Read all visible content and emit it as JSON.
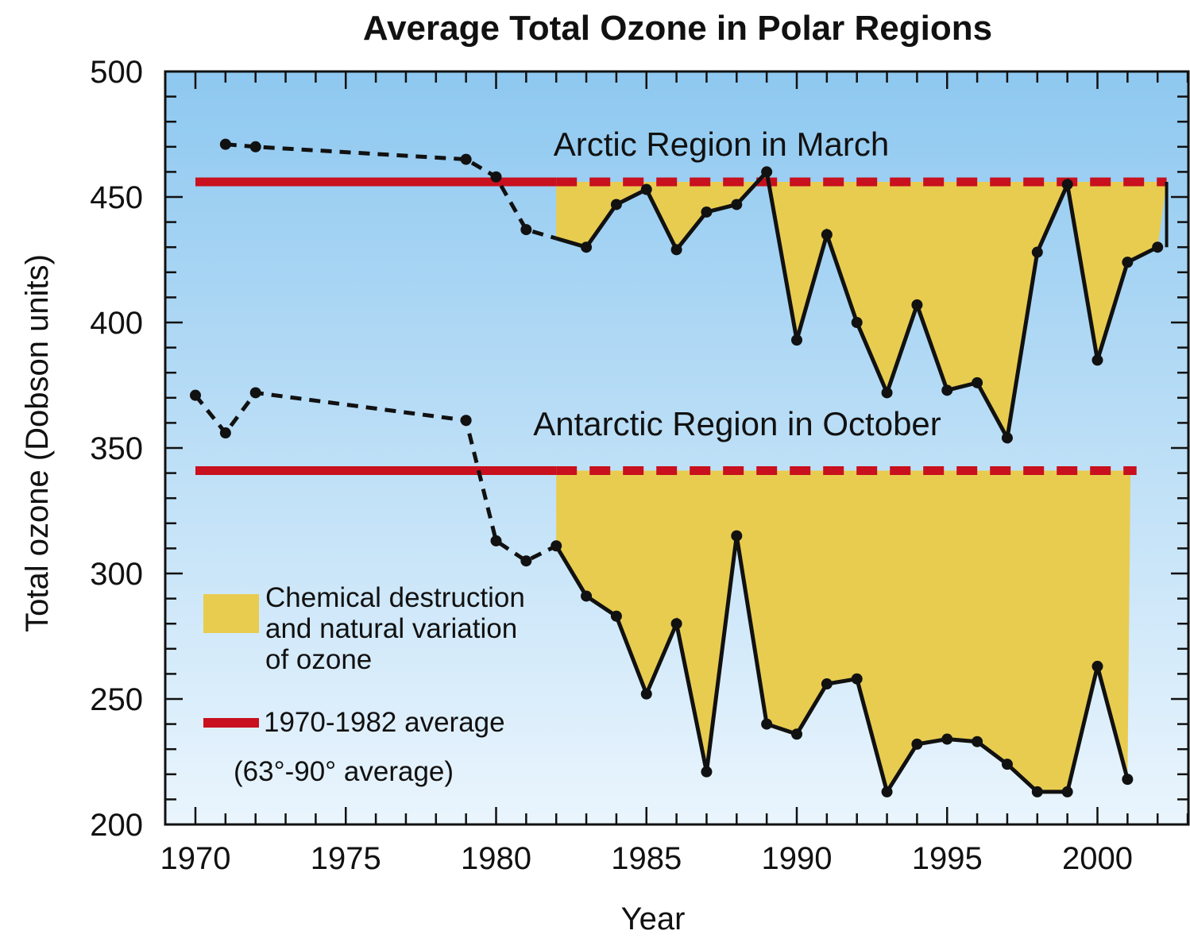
{
  "chart_data": {
    "type": "line",
    "title": "Average Total Ozone in Polar Regions",
    "xlabel": "Year",
    "ylabel": "Total ozone (Dobson units)",
    "xlim": [
      1970,
      2003
    ],
    "ylim": [
      200,
      500
    ],
    "x_ticks": [
      1970,
      1975,
      1980,
      1985,
      1990,
      1995,
      2000
    ],
    "y_ticks": [
      200,
      250,
      300,
      350,
      400,
      450,
      500
    ],
    "series": [
      {
        "name": "Arctic Region in March",
        "baseline": 456,
        "points": [
          {
            "x": 1971,
            "y": 471
          },
          {
            "x": 1972,
            "y": 470
          },
          {
            "x": 1979,
            "y": 465
          },
          {
            "x": 1980,
            "y": 458
          },
          {
            "x": 1981,
            "y": 437
          },
          {
            "x": 1983,
            "y": 430
          },
          {
            "x": 1984,
            "y": 447
          },
          {
            "x": 1985,
            "y": 453
          },
          {
            "x": 1986,
            "y": 429
          },
          {
            "x": 1987,
            "y": 444
          },
          {
            "x": 1988,
            "y": 447
          },
          {
            "x": 1989,
            "y": 460
          },
          {
            "x": 1990,
            "y": 393
          },
          {
            "x": 1991,
            "y": 435
          },
          {
            "x": 1992,
            "y": 400
          },
          {
            "x": 1993,
            "y": 372
          },
          {
            "x": 1994,
            "y": 407
          },
          {
            "x": 1995,
            "y": 373
          },
          {
            "x": 1996,
            "y": 376
          },
          {
            "x": 1997,
            "y": 354
          },
          {
            "x": 1998,
            "y": 428
          },
          {
            "x": 1999,
            "y": 455
          },
          {
            "x": 2000,
            "y": 385
          },
          {
            "x": 2001,
            "y": 424
          },
          {
            "x": 2002,
            "y": 430
          }
        ]
      },
      {
        "name": "Antarctic Region in October",
        "baseline": 341,
        "points": [
          {
            "x": 1970,
            "y": 371
          },
          {
            "x": 1971,
            "y": 356
          },
          {
            "x": 1972,
            "y": 372
          },
          {
            "x": 1979,
            "y": 361
          },
          {
            "x": 1980,
            "y": 313
          },
          {
            "x": 1981,
            "y": 305
          },
          {
            "x": 1982,
            "y": 311
          },
          {
            "x": 1983,
            "y": 291
          },
          {
            "x": 1984,
            "y": 283
          },
          {
            "x": 1985,
            "y": 252
          },
          {
            "x": 1986,
            "y": 280
          },
          {
            "x": 1987,
            "y": 221
          },
          {
            "x": 1988,
            "y": 315
          },
          {
            "x": 1989,
            "y": 240
          },
          {
            "x": 1990,
            "y": 236
          },
          {
            "x": 1991,
            "y": 256
          },
          {
            "x": 1992,
            "y": 258
          },
          {
            "x": 1993,
            "y": 213
          },
          {
            "x": 1994,
            "y": 232
          },
          {
            "x": 1995,
            "y": 234
          },
          {
            "x": 1996,
            "y": 233
          },
          {
            "x": 1997,
            "y": 224
          },
          {
            "x": 1998,
            "y": 213
          },
          {
            "x": 1999,
            "y": 213
          },
          {
            "x": 2000,
            "y": 263
          },
          {
            "x": 2001,
            "y": 218
          }
        ]
      }
    ],
    "legend": {
      "fill_label_lines": [
        "Chemical destruction",
        "and natural variation",
        "of ozone"
      ],
      "average_label": "1970-1982 average",
      "average_note": "(63°-90° average)"
    },
    "legend_position": "lower-left",
    "colors": {
      "background_top": "#8ec8f0",
      "background_bottom": "#eaf5fd",
      "fill": "#e8cc50",
      "average_line": "#c8101e",
      "data_line": "#111111"
    }
  }
}
